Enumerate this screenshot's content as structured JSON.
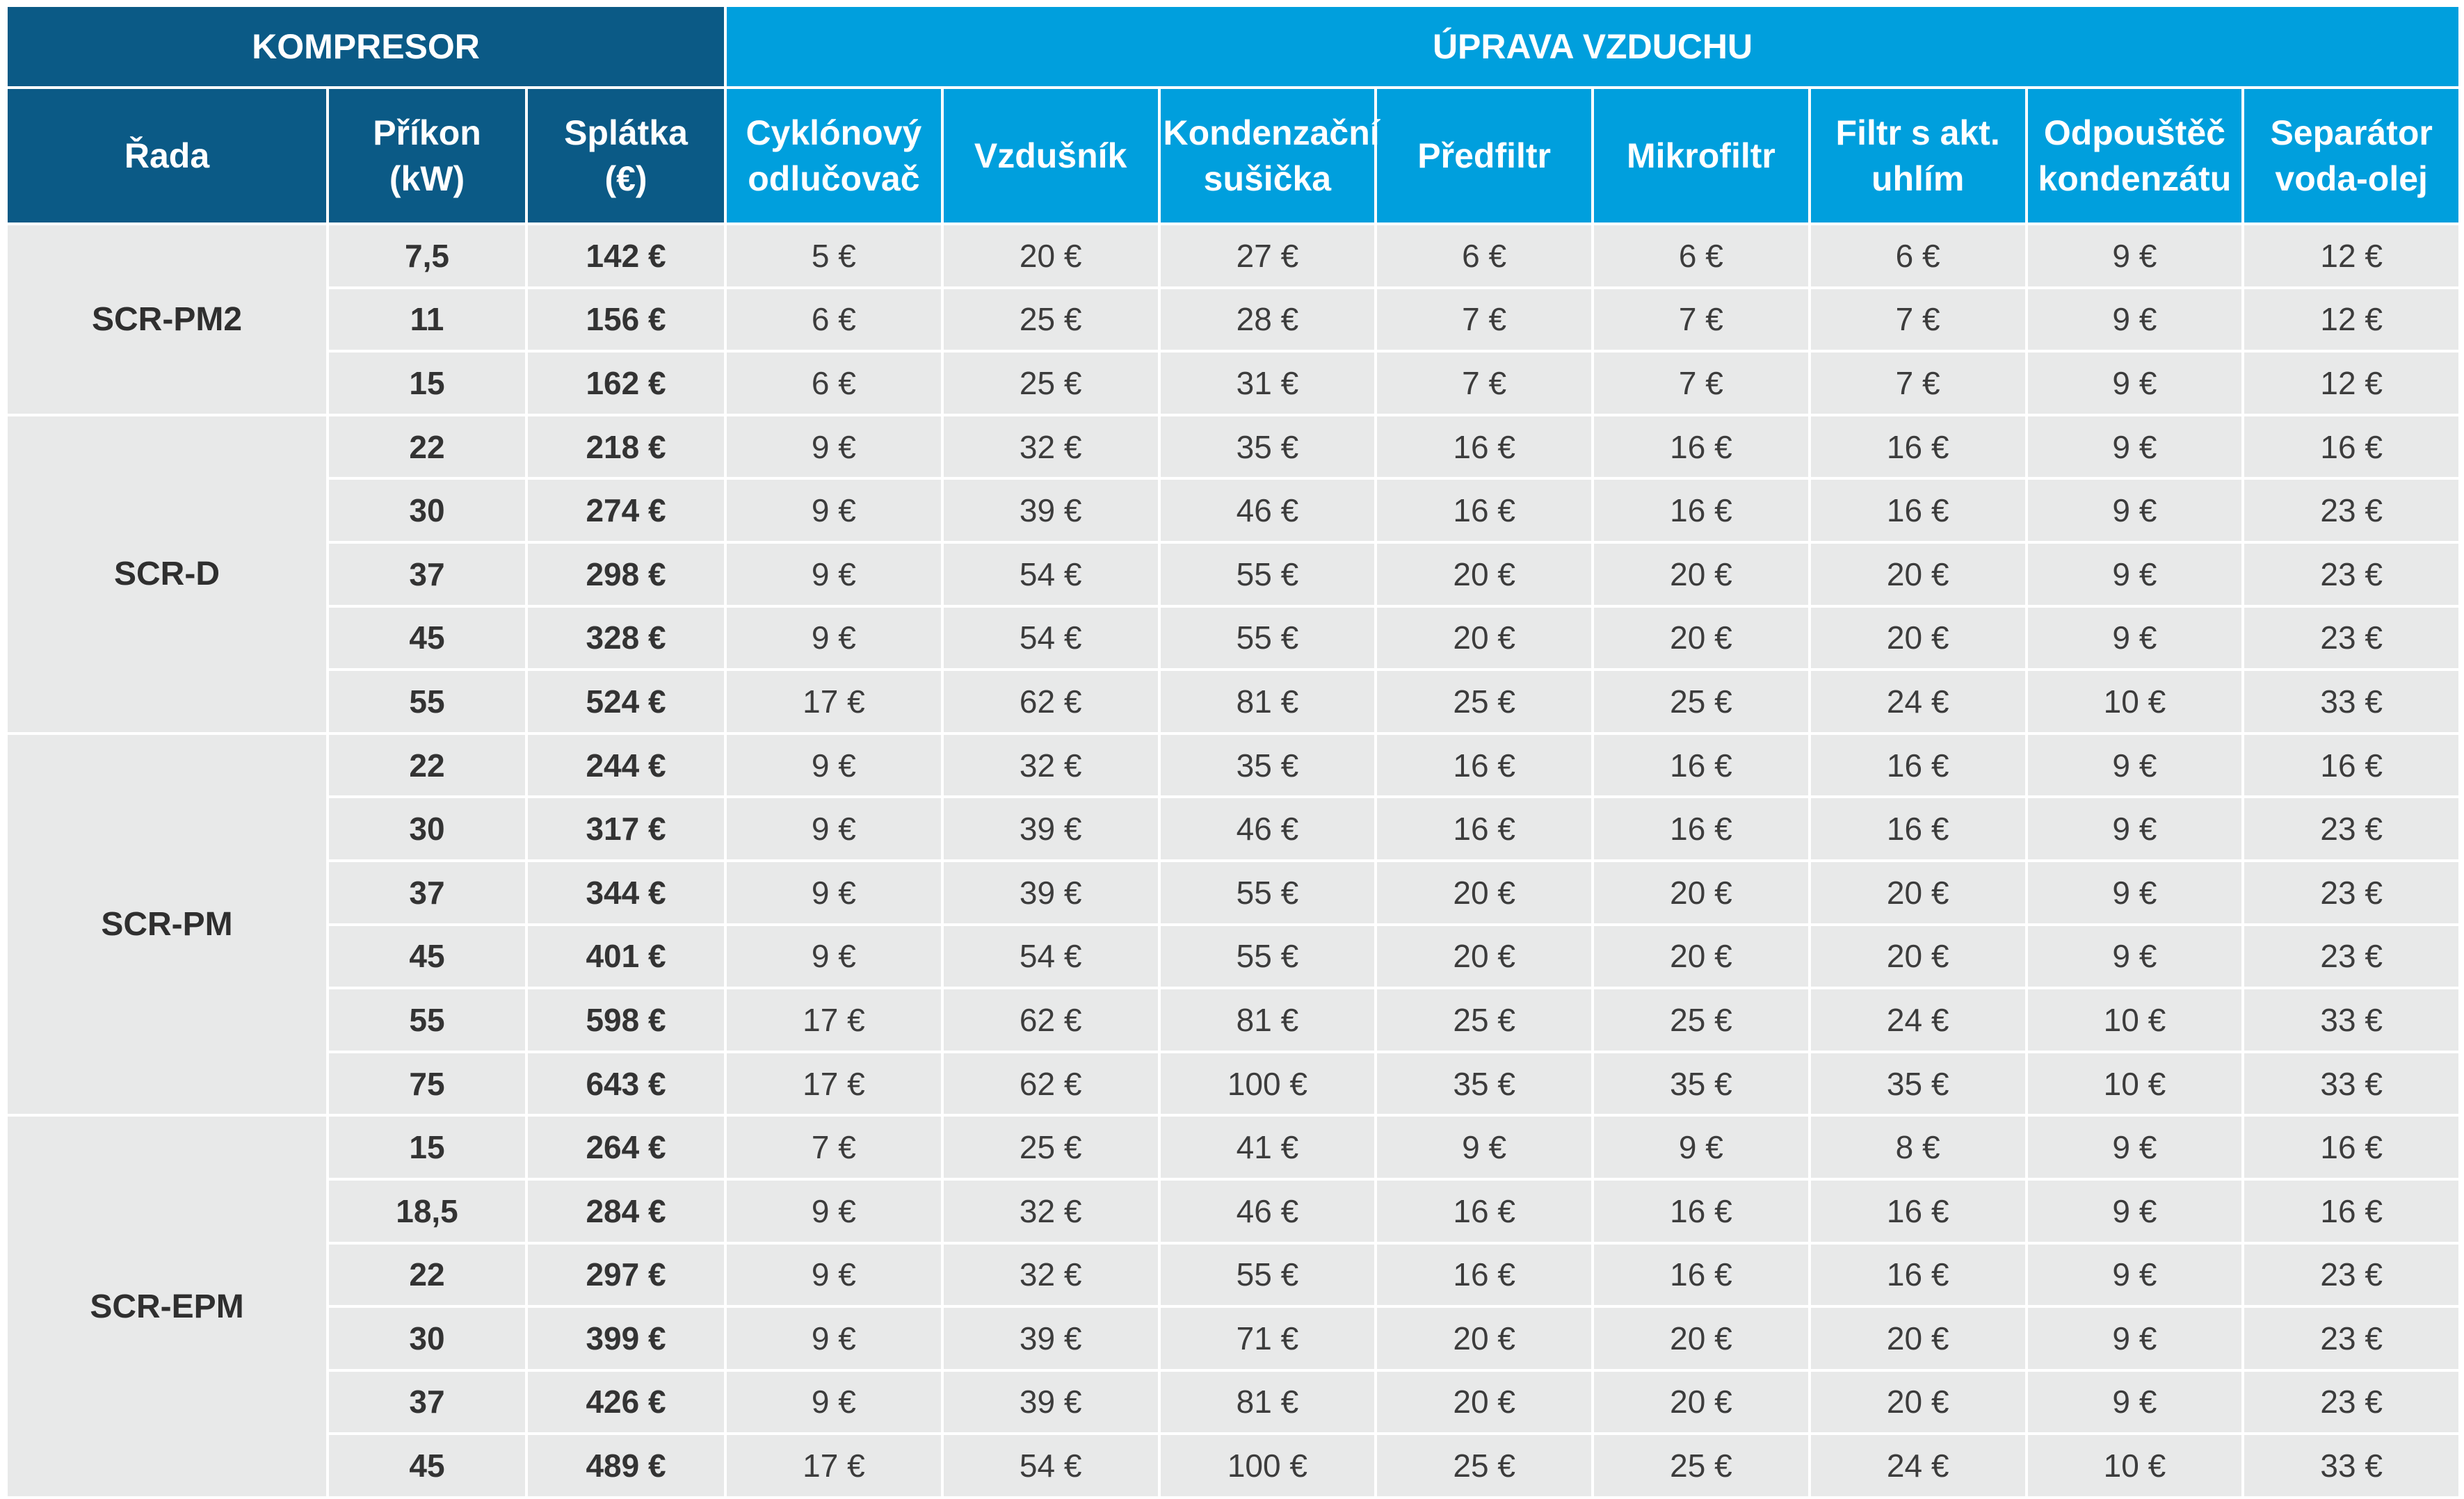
{
  "header": {
    "group_left": "KOMPRESOR",
    "group_right": "ÚPRAVA VZDUCHU",
    "columns": [
      [
        "Řada"
      ],
      [
        "Příkon",
        "(kW)"
      ],
      [
        "Splátka",
        "(€)"
      ],
      [
        "Cyklónový",
        "odlučovač"
      ],
      [
        "Vzdušník"
      ],
      [
        "Kondenzační",
        "sušička"
      ],
      [
        "Předfiltr"
      ],
      [
        "Mikrofiltr"
      ],
      [
        "Filtr s akt.",
        "uhlím"
      ],
      [
        "Odpouštěč",
        "kondenzátu"
      ],
      [
        "Separátor",
        "voda-olej"
      ]
    ]
  },
  "groups": [
    {
      "series": "SCR-PM2",
      "rows": [
        [
          "7,5",
          "142 €",
          "5 €",
          "20 €",
          "27 €",
          "6 €",
          "6 €",
          "6 €",
          "9 €",
          "12 €"
        ],
        [
          "11",
          "156 €",
          "6 €",
          "25 €",
          "28 €",
          "7 €",
          "7 €",
          "7 €",
          "9 €",
          "12 €"
        ],
        [
          "15",
          "162 €",
          "6 €",
          "25 €",
          "31 €",
          "7 €",
          "7 €",
          "7 €",
          "9 €",
          "12 €"
        ]
      ]
    },
    {
      "series": "SCR-D",
      "rows": [
        [
          "22",
          "218 €",
          "9 €",
          "32 €",
          "35 €",
          "16 €",
          "16 €",
          "16 €",
          "9 €",
          "16 €"
        ],
        [
          "30",
          "274 €",
          "9 €",
          "39 €",
          "46 €",
          "16 €",
          "16 €",
          "16 €",
          "9 €",
          "23 €"
        ],
        [
          "37",
          "298 €",
          "9 €",
          "54 €",
          "55 €",
          "20 €",
          "20 €",
          "20 €",
          "9 €",
          "23 €"
        ],
        [
          "45",
          "328 €",
          "9 €",
          "54 €",
          "55 €",
          "20 €",
          "20 €",
          "20 €",
          "9 €",
          "23 €"
        ],
        [
          "55",
          "524 €",
          "17 €",
          "62 €",
          "81 €",
          "25 €",
          "25 €",
          "24 €",
          "10 €",
          "33 €"
        ]
      ]
    },
    {
      "series": "SCR-PM",
      "rows": [
        [
          "22",
          "244 €",
          "9 €",
          "32 €",
          "35 €",
          "16 €",
          "16 €",
          "16 €",
          "9 €",
          "16 €"
        ],
        [
          "30",
          "317 €",
          "9 €",
          "39 €",
          "46 €",
          "16 €",
          "16 €",
          "16 €",
          "9 €",
          "23 €"
        ],
        [
          "37",
          "344 €",
          "9 €",
          "39 €",
          "55 €",
          "20 €",
          "20 €",
          "20 €",
          "9 €",
          "23 €"
        ],
        [
          "45",
          "401 €",
          "9 €",
          "54 €",
          "55 €",
          "20 €",
          "20 €",
          "20 €",
          "9 €",
          "23 €"
        ],
        [
          "55",
          "598 €",
          "17 €",
          "62 €",
          "81 €",
          "25 €",
          "25 €",
          "24 €",
          "10 €",
          "33 €"
        ],
        [
          "75",
          "643 €",
          "17 €",
          "62 €",
          "100 €",
          "35 €",
          "35 €",
          "35 €",
          "10 €",
          "33 €"
        ]
      ]
    },
    {
      "series": "SCR-EPM",
      "rows": [
        [
          "15",
          "264 €",
          "7 €",
          "25 €",
          "41 €",
          "9 €",
          "9 €",
          "8 €",
          "9 €",
          "16 €"
        ],
        [
          "18,5",
          "284 €",
          "9 €",
          "32 €",
          "46 €",
          "16 €",
          "16 €",
          "16 €",
          "9 €",
          "16 €"
        ],
        [
          "22",
          "297 €",
          "9 €",
          "32 €",
          "55 €",
          "16 €",
          "16 €",
          "16 €",
          "9 €",
          "23 €"
        ],
        [
          "30",
          "399 €",
          "9 €",
          "39 €",
          "71 €",
          "20 €",
          "20 €",
          "20 €",
          "9 €",
          "23 €"
        ],
        [
          "37",
          "426 €",
          "9 €",
          "39 €",
          "81 €",
          "20 €",
          "20 €",
          "20 €",
          "9 €",
          "23 €"
        ],
        [
          "45",
          "489 €",
          "17 €",
          "54 €",
          "100 €",
          "25 €",
          "25 €",
          "24 €",
          "10 €",
          "33 €"
        ]
      ]
    }
  ]
}
